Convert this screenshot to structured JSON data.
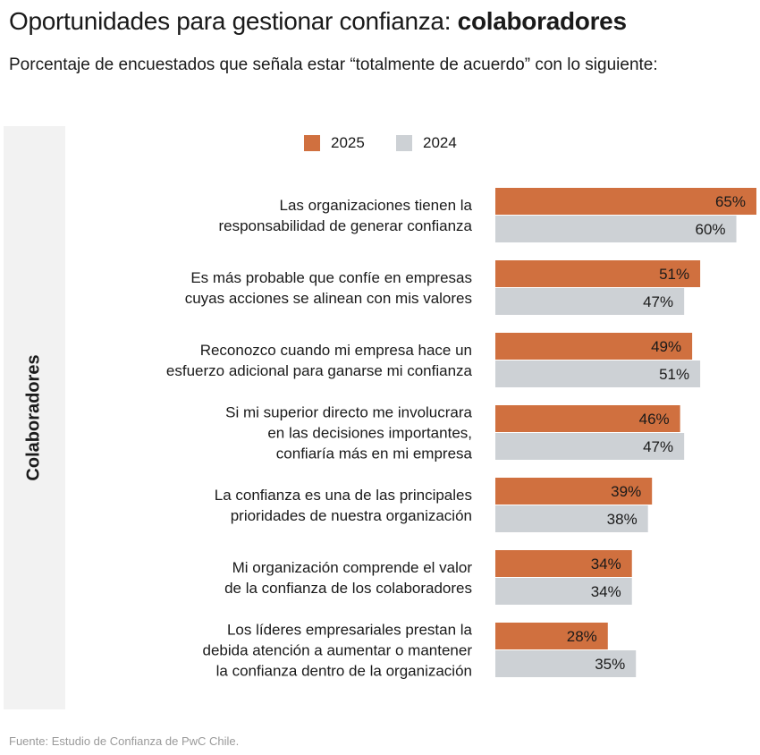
{
  "header": {
    "title_regular": "Oportunidades para gestionar confianza: ",
    "title_bold": "colaboradores",
    "subtitle": "Porcentaje de encuestados que señala estar “totalmente de acuerdo” con lo siguiente:"
  },
  "side_label": "Colaboradores",
  "source": "Fuente: Estudio de Confianza de PwC Chile.",
  "colors": {
    "series_2025": "#d0703f",
    "series_2024": "#cdd1d5",
    "panel": "#f2f2f2"
  },
  "chart_data": {
    "type": "bar",
    "orientation": "horizontal",
    "title": "Oportunidades para gestionar confianza: colaboradores",
    "ylabel": "Colaboradores",
    "xlim": [
      0,
      65
    ],
    "value_suffix": "%",
    "legend": {
      "position": "top",
      "entries": [
        "2025",
        "2024"
      ]
    },
    "categories": [
      [
        "Las organizaciones tienen la",
        "responsabilidad de generar confianza"
      ],
      [
        "Es más probable que confíe en empresas",
        "cuyas acciones se alinean con mis valores"
      ],
      [
        "Reconozco cuando mi empresa hace un",
        "esfuerzo adicional para ganarse mi confianza"
      ],
      [
        "Si mi superior directo me involucrara",
        "en las decisiones importantes,",
        "confiaría más en mi empresa"
      ],
      [
        "La confianza es una de las principales",
        "prioridades de nuestra organización"
      ],
      [
        "Mi organización comprende el valor",
        "de la confianza de los colaboradores"
      ],
      [
        "Los líderes empresariales prestan la",
        "debida atención a aumentar o mantener",
        "la confianza dentro de la organización"
      ]
    ],
    "series": [
      {
        "name": "2025",
        "color": "#d0703f",
        "values": [
          65,
          51,
          49,
          46,
          39,
          34,
          28
        ]
      },
      {
        "name": "2024",
        "color": "#cdd1d5",
        "values": [
          60,
          47,
          51,
          47,
          38,
          34,
          35
        ]
      }
    ]
  }
}
